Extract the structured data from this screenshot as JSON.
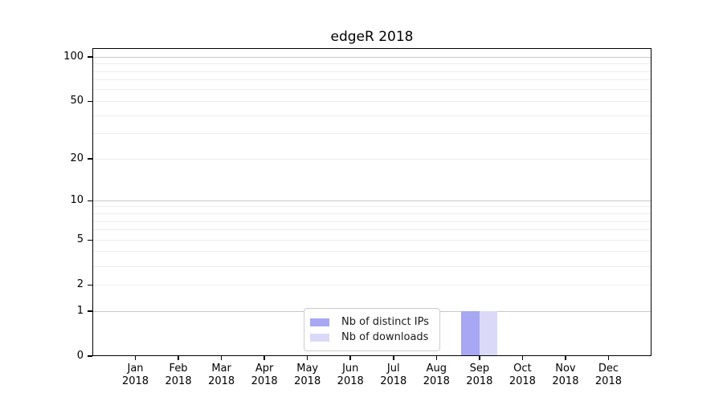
{
  "chart_data": {
    "type": "bar",
    "title": "edgeR 2018",
    "categories": [
      {
        "month": "Jan",
        "year": "2018"
      },
      {
        "month": "Feb",
        "year": "2018"
      },
      {
        "month": "Mar",
        "year": "2018"
      },
      {
        "month": "Apr",
        "year": "2018"
      },
      {
        "month": "May",
        "year": "2018"
      },
      {
        "month": "Jun",
        "year": "2018"
      },
      {
        "month": "Jul",
        "year": "2018"
      },
      {
        "month": "Aug",
        "year": "2018"
      },
      {
        "month": "Sep",
        "year": "2018"
      },
      {
        "month": "Oct",
        "year": "2018"
      },
      {
        "month": "Nov",
        "year": "2018"
      },
      {
        "month": "Dec",
        "year": "2018"
      }
    ],
    "series": [
      {
        "name": "Nb of distinct IPs",
        "key": "distinct-ips",
        "color": "#a7a7f3",
        "values": [
          0,
          0,
          0,
          0,
          0,
          0,
          0,
          0,
          1,
          0,
          0,
          0
        ]
      },
      {
        "name": "Nb of downloads",
        "key": "downloads",
        "color": "#dadaf8",
        "values": [
          0,
          0,
          0,
          0,
          0,
          0,
          0,
          0,
          1,
          0,
          0,
          0
        ]
      }
    ],
    "xlabel": "",
    "ylabel": "",
    "yscale": "log10(1+value)",
    "ylim": [
      0,
      115
    ],
    "yticks": [
      0,
      1,
      2,
      5,
      10,
      20,
      50,
      100
    ],
    "major_gridlines": [
      1,
      10,
      100
    ],
    "minor_gridlines": [
      2,
      3,
      4,
      5,
      6,
      7,
      8,
      9,
      20,
      30,
      40,
      50,
      60,
      70,
      80,
      90
    ],
    "legend": {
      "position": "lower center",
      "border_color": "#cccccc"
    },
    "colors": {
      "axis": "#000000",
      "major_grid": "#c8c8c8",
      "minor_grid": "#ededed",
      "text": "#000000"
    }
  }
}
